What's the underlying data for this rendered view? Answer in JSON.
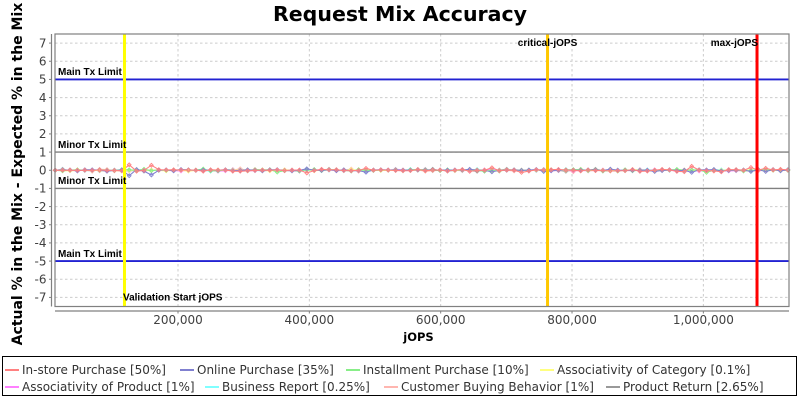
{
  "title": "Request Mix Accuracy",
  "chart_data": {
    "type": "line",
    "title": "Request Mix Accuracy",
    "xlabel": "jOPS",
    "ylabel": "Actual % in the Mix - Expected % in the Mix",
    "xlim": [
      12700,
      1130400
    ],
    "ylim": [
      -7.5,
      7.5
    ],
    "grid": true,
    "legend_position": "bottom",
    "x_ticks": [
      200000,
      400000,
      600000,
      800000,
      1000000
    ],
    "x_tick_labels": [
      "200,000",
      "400,000",
      "600,000",
      "800,000",
      "1,000,000"
    ],
    "y_ticks": [
      7,
      6,
      5,
      4,
      3,
      2,
      1,
      0,
      -1,
      -2,
      -3,
      -4,
      -5,
      -6,
      -7
    ],
    "limit_lines": [
      {
        "label": "Main Tx Limit",
        "y": 5,
        "color": "#2222d2"
      },
      {
        "label": "Minor Tx Limit",
        "y": 1,
        "color": "#808080"
      },
      {
        "label": "Minor Tx Limit",
        "y": -1,
        "color": "#808080"
      },
      {
        "label": "Main Tx Limit",
        "y": -5,
        "color": "#2222d2"
      }
    ],
    "marker_lines": [
      {
        "label": "Validation Start jOPS",
        "x": 118500,
        "color": "#ffff00",
        "anchor": "start",
        "label_pos": "bottom"
      },
      {
        "label": "critical-jOPS",
        "x": 762700,
        "color": "#ffc800",
        "anchor": "middle",
        "label_pos": "top"
      },
      {
        "label": "max-jOPS",
        "x": 1081700,
        "color": "#ff0000",
        "anchor": "end",
        "label_pos": "top"
      }
    ],
    "x": [
      13000,
      24270,
      35540,
      46810,
      58080,
      69350,
      80620,
      91890,
      103160,
      114430,
      125700,
      136970,
      148240,
      159510,
      170780,
      182050,
      193320,
      204590,
      215860,
      227130,
      238400,
      249670,
      260940,
      272210,
      283480,
      294750,
      306020,
      317290,
      328560,
      339830,
      351100,
      362370,
      373640,
      384910,
      396180,
      407450,
      418720,
      429990,
      441260,
      452530,
      463800,
      475070,
      486340,
      497610,
      508880,
      520150,
      531420,
      542690,
      553960,
      565230,
      576500,
      587770,
      599040,
      610310,
      621580,
      632850,
      644120,
      655390,
      666660,
      677930,
      689200,
      700470,
      711740,
      723010,
      734280,
      745550,
      756820,
      768090,
      779360,
      790630,
      801900,
      813170,
      824440,
      835710,
      846980,
      858250,
      869520,
      880790,
      892060,
      903330,
      914600,
      925870,
      937140,
      948410,
      959680,
      970950,
      982220,
      993490,
      1004760,
      1016030,
      1027300,
      1038570,
      1049840,
      1061110,
      1072380,
      1083650,
      1094920,
      1106190,
      1117460,
      1128730
    ],
    "series": [
      {
        "name": "In-store Purchase [50%]",
        "color": "#ff8080",
        "values": [
          0.0,
          0.0,
          0.0,
          0.0,
          0.0,
          -0.008,
          0.016,
          -0.007,
          -0.01,
          -0.03,
          0.3,
          -0.05,
          -0.007,
          0.28,
          0.036,
          0.014,
          0.033,
          0.008,
          0.013,
          0.006,
          -0.053,
          0.027,
          0.016,
          0.016,
          -0.054,
          -0.056,
          -0.028,
          -0.015,
          0.01,
          -0.001,
          0.017,
          -0.021,
          0.01,
          0.013,
          -0.15,
          -0.021,
          0.055,
          0.018,
          0.038,
          -0.02,
          -0.024,
          -0.011,
          0.1,
          -0.003,
          0.02,
          0.008,
          -0.014,
          -0.031,
          -0.017,
          0.039,
          -0.026,
          0.008,
          0.014,
          -0.048,
          0.002,
          0.042,
          -0.064,
          -0.01,
          -0.003,
          0.14,
          -0.026,
          0.016,
          -0.002,
          -0.12,
          -0.047,
          0.026,
          0.021,
          0.03,
          0.046,
          0.012,
          0.004,
          -0.042,
          0.02,
          -0.02,
          -0.014,
          -0.04,
          -0.031,
          -0.017,
          0.041,
          -0.065,
          -0.047,
          0.008,
          0.046,
          0.019,
          -0.061,
          -0.08,
          0.22,
          0.011,
          -0.024,
          -0.036,
          -0.09,
          0.031,
          0.035,
          0.005,
          0.15,
          0.008,
          0.11,
          0.014,
          0.051,
          0.02
        ]
      },
      {
        "name": "Online Purchase [35%]",
        "color": "#8080d0",
        "values": [
          0.0,
          0.013,
          0.014,
          -0.041,
          0.033,
          0.025,
          0.014,
          -0.051,
          -0.016,
          0.022,
          -0.3,
          0.04,
          -0.047,
          -0.26,
          -0.005,
          0.027,
          -0.034,
          0.042,
          0.014,
          -0.004,
          0.008,
          0.017,
          0.003,
          0.03,
          -0.017,
          -0.011,
          0.027,
          0.001,
          -0.023,
          0.025,
          0.038,
          -0.012,
          -0.036,
          -0.004,
          0.08,
          -0.004,
          -0.008,
          0.037,
          -0.027,
          0.033,
          -0.033,
          -0.02,
          -0.11,
          0.016,
          0.029,
          0.022,
          0.009,
          0.004,
          0.004,
          0.015,
          -0.005,
          0.007,
          0.015,
          0.0,
          0.02,
          0.015,
          0.052,
          0.008,
          -0.011,
          -0.09,
          -0.01,
          -0.0,
          0.024,
          -0.009,
          0.01,
          0.048,
          -0.067,
          -0.029,
          0.006,
          0.01,
          0.006,
          -0.011,
          0.017,
          0.007,
          -0.014,
          0.063,
          0.009,
          -0.014,
          -0.003,
          -0.006,
          -0.002,
          -0.07,
          -0.013,
          0.026,
          -0.03,
          -0.002,
          -0.12,
          0.025,
          0.022,
          0.039,
          -0.044,
          -0.009,
          -0.009,
          0.016,
          -0.07,
          0.028,
          -0.07,
          0.028,
          -0.038,
          0.018
        ]
      },
      {
        "name": "Installment Purchase [10%]",
        "color": "#88ee88",
        "values": [
          0.0,
          -0.037,
          0.004,
          0.03,
          -0.004,
          0.005,
          0.02,
          0.004,
          -0.002,
          0.038,
          0.026,
          -0.007,
          0.06,
          -0.029,
          0.023,
          -0.007,
          0.003,
          0.018,
          0.006,
          0.016,
          0.07,
          -0.038,
          -0.038,
          0.015,
          -0.024,
          -0.026,
          -0.037,
          0.032,
          0.019,
          0.037,
          -0.1,
          -0.023,
          0.0,
          -0.029,
          0.019,
          0.04,
          -0.022,
          0.039,
          0.025,
          -0.004,
          -0.049,
          0.035,
          -0.002,
          -0.015,
          0.01,
          0.01,
          0.037,
          -0.026,
          0.028,
          0.037,
          0.036,
          -0.005,
          -0.019,
          0.025,
          0.003,
          0.003,
          0.036,
          -0.007,
          -0.057,
          -0.01,
          -0.046,
          0.02,
          0.008,
          -0.015,
          -0.0,
          0.021,
          0.002,
          0.033,
          -0.002,
          0.026,
          0.037,
          0.04,
          -0.017,
          0.022,
          -0.047,
          -0.027,
          -0.049,
          0.027,
          -0.031,
          -0.0,
          -0.005,
          -0.001,
          -0.015,
          0.006,
          0.045,
          0.001,
          0.013,
          0.025,
          -0.12,
          -0.005,
          -0.031,
          -0.014,
          0.027,
          -0.041,
          -0.015,
          0.025,
          0.02,
          0.0,
          0.02,
          0.004
        ]
      },
      {
        "name": "Associativity of Category [0.1%]",
        "color": "#ffff80",
        "values": [
          0.0,
          -0.021,
          -0.028,
          -0.012,
          0.017,
          -0.01,
          -0.016,
          -0.014,
          -0.028,
          -0.002,
          -0.021,
          0.007,
          -0.04,
          0.006,
          -0.012,
          -0.035,
          0.013,
          -0.005,
          -0.04,
          -0.016,
          0.005,
          -0.008,
          0.014,
          0.013,
          0.012,
          0.006,
          0.024,
          0.012,
          0.008,
          -0.038,
          0.016,
          0.024,
          -0.005,
          -0.008,
          0.035,
          -0.032,
          0.008,
          0.04,
          -0.017,
          0.012,
          0.034,
          -0.002,
          0.01,
          0.016,
          -0.016,
          -0.002,
          0.005,
          0.015,
          -0.001,
          -0.004,
          -0.018,
          -0.006,
          0.016,
          0.002,
          -0.015,
          -0.015,
          0.04,
          0.021,
          0.011,
          -0.04,
          0.011,
          0.009,
          0.03,
          0.008,
          -0.001,
          0.009,
          -0.035,
          0.019,
          0.006,
          -0.013,
          0.024,
          0.033,
          -0.025,
          -0.012,
          0.005,
          0.003,
          -0.007,
          -0.018,
          0.038,
          0.019,
          -0.021,
          -0.024,
          0.031,
          0.018,
          0.033,
          0.015,
          -0.016,
          0.005,
          -0.039,
          -0.013,
          -0.001,
          0.009,
          -0.013,
          -0.002,
          0.008,
          0.007,
          0.011,
          0.004,
          -0.006,
          0.014
        ]
      },
      {
        "name": "Associativity of Product [1%]",
        "color": "#ff80ff",
        "values": [
          0.0,
          0.001,
          -0.018,
          -0.014,
          -0.0,
          -0.002,
          0.003,
          -0.0,
          0.004,
          -0.003,
          -0.028,
          0.009,
          0.023,
          0.01,
          -0.004,
          0.01,
          -0.021,
          -0.042,
          0.001,
          -0.02,
          0.016,
          -0.024,
          -0.05,
          -0.023,
          0.035,
          -0.008,
          -0.03,
          -0.017,
          0.011,
          0.011,
          0.004,
          0.033,
          0.016,
          -0.0,
          0.013,
          0.036,
          0.021,
          0.023,
          -0.024,
          -0.003,
          0.016,
          -0.007,
          0.024,
          0.013,
          0.02,
          -0.005,
          0.05,
          0.027,
          -0.005,
          0.002,
          0.05,
          -0.008,
          0.019,
          0.022,
          0.0,
          -0.026,
          0.004,
          0.008,
          0.025,
          0.017,
          0.001,
          0.019,
          0.012,
          0.005,
          0.001,
          -0.005,
          0.015,
          -0.023,
          -0.014,
          0.0,
          -0.032,
          -0.01,
          -0.044,
          -0.015,
          0.013,
          0.012,
          -0.001,
          -0.005,
          -0.031,
          0.04,
          0.011,
          0.024,
          -0.019,
          -0.004,
          -0.04,
          0.017,
          0.021,
          -0.042,
          -0.001,
          0.014,
          -0.039,
          -0.04,
          -0.023,
          -0.014,
          -0.031,
          0.001,
          0.005,
          0.014,
          0.015,
          0.033
        ]
      },
      {
        "name": "Business Report [0.25%]",
        "color": "#80ffff",
        "values": [
          0.0,
          0.023,
          -0.026,
          -0.01,
          -0.021,
          -0.022,
          -0.002,
          0.0,
          0.01,
          -0.032,
          -0.025,
          -0.0,
          -0.004,
          -0.006,
          -0.001,
          -0.015,
          0.014,
          0.007,
          -0.002,
          -0.013,
          -0.003,
          -0.05,
          -0.02,
          0.001,
          -0.03,
          0.004,
          0.003,
          -0.028,
          -0.005,
          -0.006,
          0.009,
          0.012,
          -0.001,
          -0.017,
          -0.003,
          -0.001,
          0.015,
          0.006,
          -0.014,
          -0.027,
          -0.007,
          -0.015,
          -0.022,
          -0.002,
          -0.01,
          0.002,
          0.01,
          -0.008,
          0.046,
          -0.006,
          0.022,
          0.002,
          0.022,
          -0.048,
          -0.015,
          0.005,
          0.012,
          0.047,
          0.006,
          0.026,
          0.015,
          0.019,
          0.01,
          -0.003,
          0.01,
          -0.022,
          0.024,
          -0.02,
          0.005,
          0.042,
          -0.004,
          0.0,
          0.023,
          0.001,
          -0.016,
          0.005,
          0.012,
          0.014,
          -0.015,
          0.035,
          0.033,
          0.0,
          0.005,
          -0.009,
          0.028,
          -0.014,
          0.013,
          -0.01,
          -0.014,
          0.014,
          0.027,
          -0.0,
          -0.014,
          0.016,
          -0.001,
          0.006,
          0.03,
          0.023,
          -0.01,
          0.046
        ]
      },
      {
        "name": "Customer Buying Behavior [1%]",
        "color": "#ffb6b0",
        "values": [
          0.0,
          0.0,
          0.024,
          -0.019,
          -0.001,
          -0.052,
          0.054,
          0.041,
          -0.036,
          -0.045,
          -0.049,
          0.035,
          -0.014,
          -0.002,
          -0.009,
          -0.004,
          -0.033,
          0.001,
          -0.043,
          -0.002,
          0.009,
          0.014,
          -0.007,
          -0.027,
          0.005,
          0.08,
          -0.015,
          0.047,
          0.023,
          -0.003,
          -0.014,
          -0.021,
          -0.028,
          -0.011,
          0.009,
          0.015,
          0.017,
          0.063,
          -0.021,
          0.0,
          0.07,
          -0.056,
          -0.016,
          0.005,
          0.005,
          0.012,
          -0.007,
          0.011,
          0.002,
          0.023,
          -0.057,
          -0.027,
          -0.0,
          -0.031,
          -0.031,
          0.019,
          -0.019,
          0.019,
          0.022,
          0.009,
          0.015,
          -0.003,
          -0.042,
          -0.001,
          0.014,
          -0.016,
          -0.003,
          0.022,
          -0.026,
          0.019,
          -0.08,
          0.056,
          -0.017,
          0.004,
          -0.005,
          0.046,
          0.009,
          0.027,
          -0.021,
          -0.0,
          -0.0,
          -0.053,
          0.043,
          0.027,
          -0.052,
          0.022,
          -0.004,
          0.013,
          0.011,
          -0.045,
          -0.006,
          0.045,
          -0.017,
          -0.031,
          -0.041,
          -0.037,
          0.01,
          0.051,
          0.013,
          0.007
        ]
      },
      {
        "name": "Product Return [2.65%]",
        "color": "#999999",
        "values": [
          0.0,
          0.054,
          -0.012,
          -0.016,
          0.013,
          0.013,
          -0.024,
          -0.028,
          0.007,
          0.006,
          -0.031,
          -0.005,
          -0.013,
          0.011,
          -0.003,
          -0.002,
          -0.008,
          0.025,
          0.033,
          -0.009,
          0.02,
          -0.018,
          0.002,
          0.018,
          0.036,
          -0.009,
          -0.002,
          0.005,
          -0.036,
          0.0,
          -0.016,
          0.009,
          -0.027,
          -0.047,
          0.001,
          0.006,
          -0.013,
          0.021,
          -0.007,
          -0.015,
          0.011,
          -0.038,
          -0.016,
          -0.0,
          0.02,
          -0.004,
          0.007,
          -0.016,
          0.007,
          0.04,
          -0.016,
          0.057,
          -0.015,
          0.0,
          0.004,
          0.025,
          -0.03,
          -0.05,
          0.015,
          0.019,
          0.015,
          0.06,
          0.005,
          0.006,
          0.022,
          0.009,
          0.04,
          -0.03,
          -0.009,
          -0.06,
          0.019,
          -0.009,
          0.022,
          0.052,
          -0.0,
          -0.006,
          -0.012,
          -0.02,
          -0.015,
          0.015,
          0.001,
          0.002,
          -0.004,
          0.022,
          0.012,
          -0.003,
          0.016,
          -0.004,
          -0.028,
          0.035,
          0.011,
          -0.023,
          0.026,
          0.008,
          -0.038,
          0.039,
          0.008,
          0.021,
          0.005,
          -0.004
        ]
      }
    ]
  },
  "colors": {
    "background": "#ffffff",
    "plot_border": "#808080",
    "gridline": "#cccccc",
    "axis_line": "#808080",
    "tick_label": "#404040",
    "text": "#000000"
  }
}
